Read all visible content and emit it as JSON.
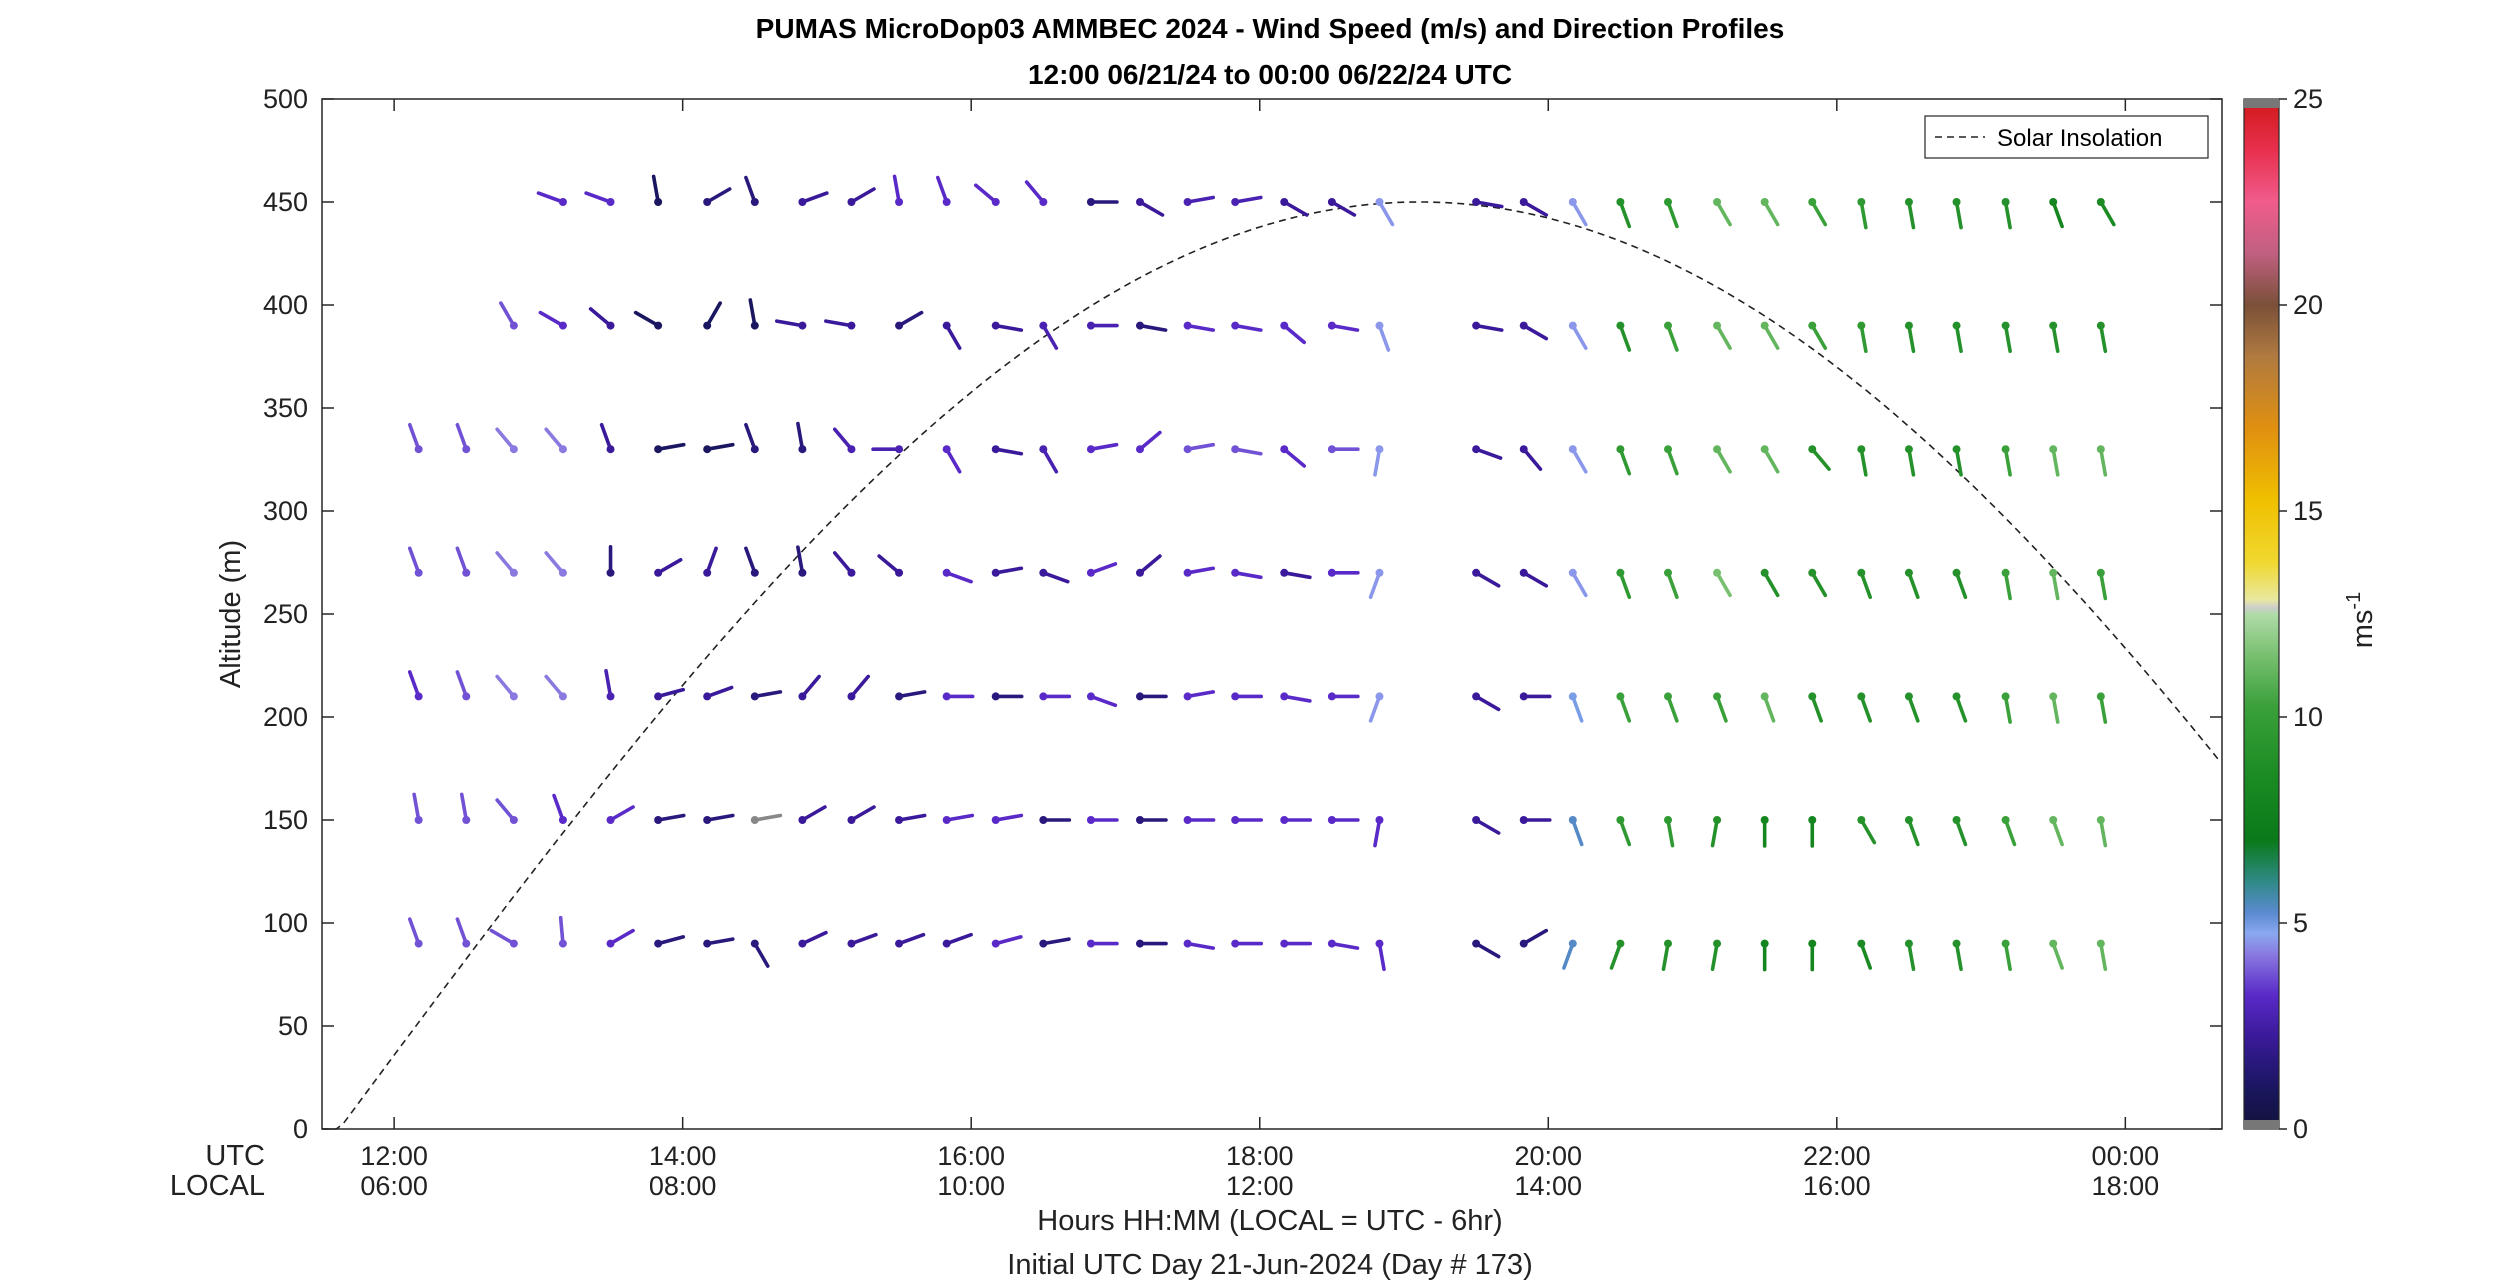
{
  "chart_data": {
    "type": "scatter",
    "title": "PUMAS MicroDop03 AMMBEC 2024 - Wind Speed (m/s) and Direction Profiles",
    "subtitle": "12:00 06/21/24 to 00:00 06/22/24  UTC",
    "ylabel": "Altitude (m)",
    "xlabel": "Hours HH:MM  (LOCAL = UTC - 6hr)",
    "xlabel2": "Initial UTC Day 21-Jun-2024 (Day # 173)",
    "row_label_utc": "UTC",
    "row_label_local": "LOCAL",
    "xlim_hours": [
      11.5,
      24.67
    ],
    "ylim": [
      0,
      500
    ],
    "yticks": [
      0,
      50,
      100,
      150,
      200,
      250,
      300,
      350,
      400,
      450,
      500
    ],
    "xticks": [
      {
        "h": 12,
        "utc": "12:00",
        "local": "06:00"
      },
      {
        "h": 14,
        "utc": "14:00",
        "local": "08:00"
      },
      {
        "h": 16,
        "utc": "16:00",
        "local": "10:00"
      },
      {
        "h": 18,
        "utc": "18:00",
        "local": "12:00"
      },
      {
        "h": 20,
        "utc": "20:00",
        "local": "14:00"
      },
      {
        "h": 22,
        "utc": "22:00",
        "local": "16:00"
      },
      {
        "h": 24,
        "utc": "00:00",
        "local": "18:00"
      }
    ],
    "legend": {
      "label": "Solar Insolation",
      "placement": "top-right"
    },
    "colorbar": {
      "label": "ms",
      "label_exponent": "-1",
      "range": [
        0,
        25
      ],
      "ticks": [
        0,
        5,
        10,
        15,
        20,
        25
      ]
    },
    "altitudes": [
      90,
      150,
      210,
      270,
      330,
      390,
      450
    ],
    "times": [
      12.17,
      12.5,
      12.83,
      13.17,
      13.5,
      13.83,
      14.17,
      14.5,
      14.83,
      15.17,
      15.5,
      15.83,
      16.17,
      16.5,
      16.83,
      17.17,
      17.5,
      17.83,
      18.17,
      18.5,
      18.83,
      19.17,
      19.5,
      19.83,
      20.17,
      20.5,
      20.83,
      21.17,
      21.5,
      21.83,
      22.17,
      22.5,
      22.83,
      23.17,
      23.5,
      23.83
    ],
    "wind_dir_deg": [
      [
        340,
        340,
        300,
        355,
        60,
        75,
        80,
        150,
        65,
        70,
        70,
        70,
        75,
        80,
        90,
        90,
        100,
        90,
        90,
        100,
        170,
        null,
        120,
        60,
        200,
        200,
        190,
        190,
        180,
        180,
        160,
        170,
        170,
        170,
        160,
        170
      ],
      [
        350,
        350,
        320,
        340,
        60,
        80,
        80,
        80,
        60,
        60,
        80,
        80,
        80,
        90,
        90,
        90,
        90,
        90,
        90,
        90,
        190,
        null,
        120,
        90,
        160,
        160,
        170,
        190,
        180,
        180,
        150,
        160,
        160,
        160,
        160,
        170
      ],
      [
        340,
        340,
        320,
        320,
        350,
        75,
        70,
        80,
        40,
        40,
        80,
        90,
        90,
        90,
        110,
        90,
        80,
        90,
        100,
        90,
        200,
        null,
        120,
        90,
        160,
        160,
        160,
        160,
        160,
        160,
        160,
        160,
        160,
        170,
        170,
        170
      ],
      [
        340,
        340,
        320,
        320,
        360,
        60,
        20,
        340,
        350,
        320,
        310,
        110,
        80,
        110,
        70,
        50,
        80,
        100,
        100,
        90,
        200,
        null,
        120,
        120,
        150,
        160,
        160,
        150,
        150,
        150,
        160,
        160,
        160,
        170,
        170,
        170
      ],
      [
        340,
        340,
        320,
        320,
        340,
        80,
        80,
        340,
        350,
        320,
        270,
        150,
        100,
        150,
        80,
        50,
        80,
        100,
        130,
        90,
        190,
        null,
        110,
        140,
        150,
        160,
        160,
        150,
        150,
        140,
        170,
        170,
        170,
        170,
        170,
        170
      ],
      [
        null,
        null,
        330,
        300,
        310,
        300,
        30,
        350,
        280,
        280,
        60,
        150,
        100,
        150,
        90,
        100,
        100,
        100,
        130,
        100,
        160,
        null,
        100,
        120,
        150,
        160,
        160,
        150,
        150,
        150,
        170,
        170,
        170,
        170,
        170,
        170
      ],
      [
        null,
        null,
        null,
        290,
        290,
        350,
        60,
        340,
        70,
        60,
        350,
        340,
        310,
        320,
        90,
        120,
        80,
        80,
        120,
        120,
        150,
        null,
        100,
        120,
        150,
        160,
        160,
        150,
        150,
        150,
        170,
        170,
        170,
        170,
        160,
        150
      ]
    ],
    "wind_speed_ms": [
      [
        3.5,
        3.5,
        3.5,
        3.5,
        3,
        1.5,
        1.5,
        1.5,
        2,
        2,
        2,
        2,
        3,
        1.5,
        3,
        1.5,
        3,
        3,
        3,
        3,
        3,
        null,
        1.5,
        1.5,
        5.5,
        9,
        9,
        9,
        8,
        8,
        8.5,
        9,
        9,
        10,
        11,
        11
      ],
      [
        3.5,
        3.5,
        3.5,
        3,
        3,
        1.5,
        1.5,
        0,
        2,
        2,
        2,
        3,
        3,
        1.5,
        3,
        1.5,
        3,
        3,
        3,
        3,
        3,
        null,
        2,
        2,
        5.5,
        9.5,
        9.5,
        9,
        8,
        8,
        9,
        9,
        9,
        10,
        11,
        11
      ],
      [
        3,
        3.5,
        4,
        4,
        2.5,
        2,
        2,
        1.5,
        2,
        2,
        1.5,
        3,
        1.5,
        3,
        3,
        1.5,
        3,
        3,
        3,
        3,
        4.5,
        null,
        2,
        2,
        5,
        10,
        10,
        10,
        11,
        9,
        9,
        9,
        9,
        10,
        11,
        10
      ],
      [
        3.5,
        3.5,
        4,
        4,
        1.5,
        2,
        2,
        1.5,
        1.5,
        2,
        2,
        3,
        2,
        2,
        3,
        2,
        3,
        3,
        2,
        3,
        4.5,
        null,
        2,
        2,
        4.5,
        9.5,
        10,
        11.5,
        9,
        9,
        9,
        9,
        9,
        10,
        11,
        10
      ],
      [
        3.5,
        3.5,
        4,
        4,
        2,
        1,
        1,
        1.5,
        1.5,
        2.5,
        2.5,
        3,
        2,
        2.5,
        3,
        3,
        3.5,
        3.5,
        3,
        3.5,
        4.5,
        null,
        2,
        2,
        4.5,
        9.5,
        10,
        11,
        11,
        9,
        9,
        9,
        9,
        10,
        11,
        11
      ],
      [
        null,
        null,
        3.5,
        3,
        2,
        1,
        1,
        1,
        2,
        2,
        1.5,
        2,
        2,
        2.5,
        2.5,
        1.5,
        3,
        3,
        3,
        3,
        4.5,
        null,
        2,
        2,
        4.5,
        9,
        10,
        11,
        11,
        10,
        9.5,
        9,
        9,
        9,
        9,
        9
      ],
      [
        null,
        null,
        null,
        3,
        3,
        1,
        1.5,
        1.5,
        2,
        2,
        3,
        3,
        3,
        3,
        1.5,
        2,
        2.5,
        2.5,
        2,
        2,
        4.5,
        null,
        2,
        2,
        4.5,
        9,
        9.5,
        11,
        11,
        10,
        9.5,
        9,
        9,
        9,
        8,
        8.5
      ]
    ]
  }
}
